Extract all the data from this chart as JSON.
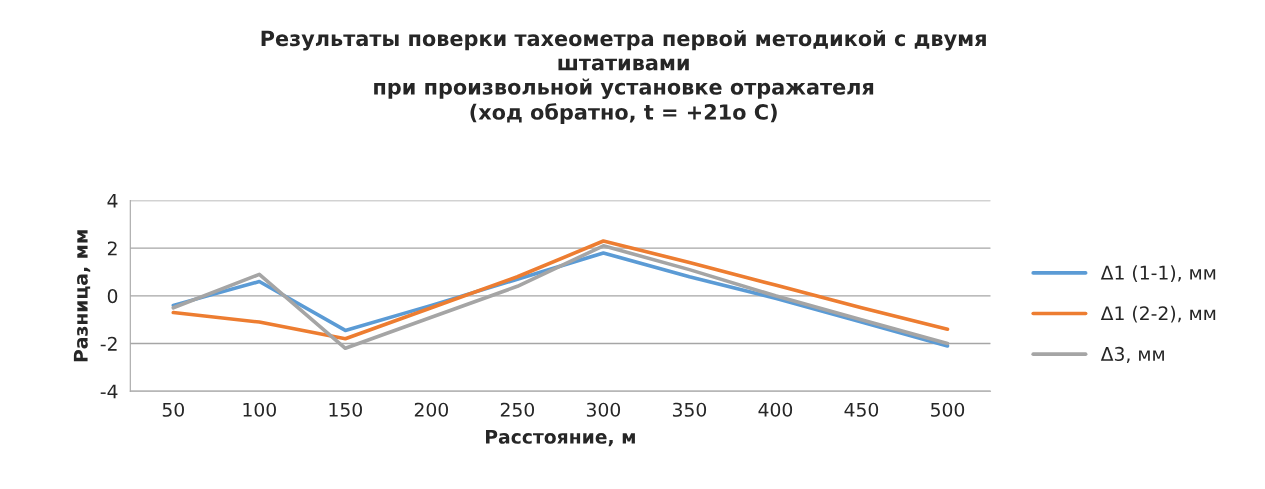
{
  "chart_data": {
    "type": "line",
    "title": "Результаты поверки тахеометра первой методикой с двумя\nштативами\nпри произвольной установке отражателя\n(ход обратно, t = +21o C)",
    "xlabel": "Расстояние, м",
    "ylabel": "Разница, мм",
    "categories": [
      "50",
      "100",
      "150",
      "200",
      "250",
      "300",
      "350",
      "400",
      "450",
      "500"
    ],
    "series": [
      {
        "name": "Δ1 (1-1), мм",
        "color": "#5b9bd5",
        "values": [
          -0.4,
          0.6,
          -1.45,
          -0.4,
          0.7,
          1.8,
          0.8,
          -0.1,
          -1.1,
          -2.1
        ]
      },
      {
        "name": "Δ1 (2-2), мм",
        "color": "#ed7d31",
        "values": [
          -0.7,
          -1.1,
          -1.8,
          -0.5,
          0.8,
          2.3,
          1.4,
          0.45,
          -0.5,
          -1.4
        ]
      },
      {
        "name": "Δ3, мм",
        "color": "#a5a5a5",
        "values": [
          -0.5,
          0.9,
          -2.2,
          -0.9,
          0.4,
          2.1,
          1.1,
          0.0,
          -1.0,
          -2.0
        ]
      }
    ],
    "ylim": [
      -4,
      4
    ],
    "yticks": [
      -4,
      -2,
      0,
      2,
      4
    ],
    "grid": "y",
    "legend": "right",
    "marker": "none",
    "line_style": "solid"
  }
}
